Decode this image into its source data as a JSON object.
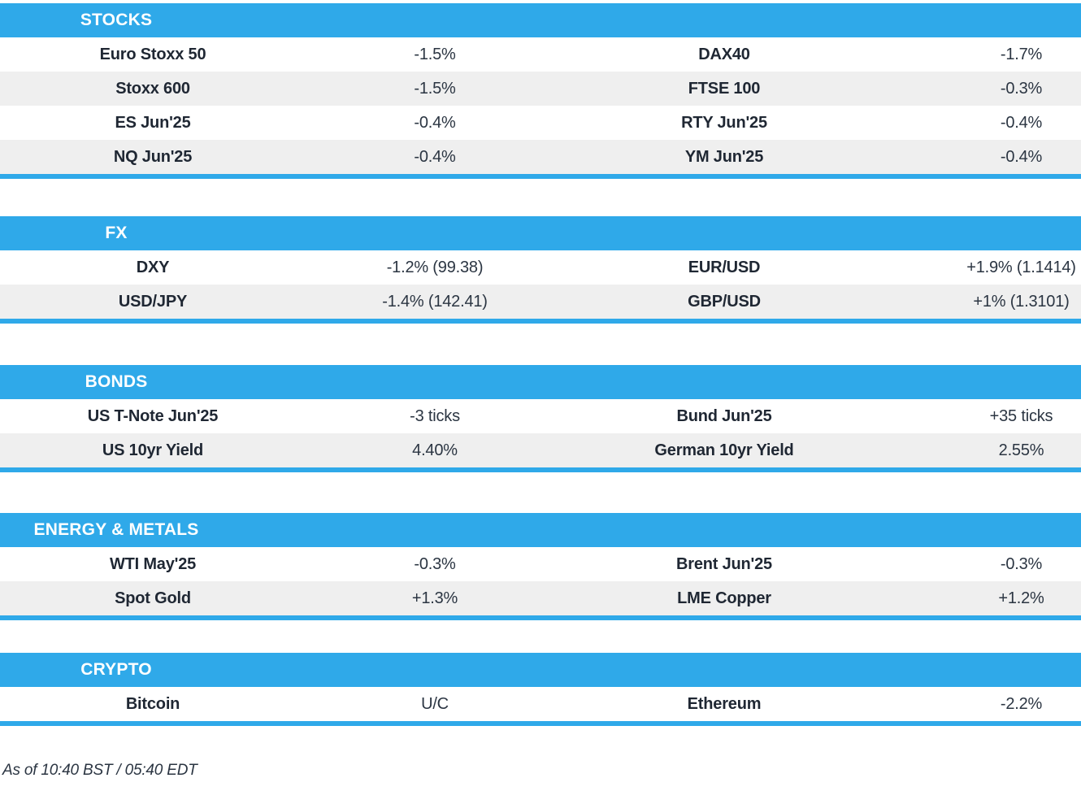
{
  "colors": {
    "accent_blue": "#2FA9E9",
    "row_alt_gray": "#EFEFEF",
    "name_text": "#1F2733",
    "value_text": "#2B3542"
  },
  "sections": [
    {
      "id": "stocks",
      "title": "STOCKS",
      "rows": [
        [
          {
            "name": "Euro Stoxx 50",
            "value": "-1.5%"
          },
          {
            "name": "DAX40",
            "value": "-1.7%"
          }
        ],
        [
          {
            "name": "Stoxx 600",
            "value": "-1.5%"
          },
          {
            "name": "FTSE 100",
            "value": "-0.3%"
          }
        ],
        [
          {
            "name": "ES Jun'25",
            "value": "-0.4%"
          },
          {
            "name": "RTY Jun'25",
            "value": "-0.4%"
          }
        ],
        [
          {
            "name": "NQ Jun'25",
            "value": "-0.4%"
          },
          {
            "name": "YM Jun'25",
            "value": "-0.4%"
          }
        ]
      ]
    },
    {
      "id": "fx",
      "title": "FX",
      "rows": [
        [
          {
            "name": "DXY",
            "value": "-1.2% (99.38)"
          },
          {
            "name": "EUR/USD",
            "value": "+1.9% (1.1414)"
          }
        ],
        [
          {
            "name": "USD/JPY",
            "value": "-1.4% (142.41)"
          },
          {
            "name": "GBP/USD",
            "value": "+1% (1.3101)"
          }
        ]
      ]
    },
    {
      "id": "bonds",
      "title": "BONDS",
      "rows": [
        [
          {
            "name": "US T-Note Jun'25",
            "value": "-3 ticks"
          },
          {
            "name": "Bund Jun'25",
            "value": "+35 ticks"
          }
        ],
        [
          {
            "name": "US 10yr Yield",
            "value": "4.40%"
          },
          {
            "name": "German 10yr Yield",
            "value": "2.55%"
          }
        ]
      ]
    },
    {
      "id": "energy-metals",
      "title": "ENERGY & METALS",
      "rows": [
        [
          {
            "name": "WTI May'25",
            "value": "-0.3%"
          },
          {
            "name": "Brent Jun'25",
            "value": "-0.3%"
          }
        ],
        [
          {
            "name": "Spot Gold",
            "value": "+1.3%"
          },
          {
            "name": "LME Copper",
            "value": "+1.2%"
          }
        ]
      ]
    },
    {
      "id": "crypto",
      "title": "CRYPTO",
      "rows": [
        [
          {
            "name": "Bitcoin",
            "value": "U/C"
          },
          {
            "name": "Ethereum",
            "value": "-2.2%"
          }
        ]
      ]
    }
  ],
  "footer": {
    "as_of": "As of 10:40 BST / 05:40 EDT"
  }
}
